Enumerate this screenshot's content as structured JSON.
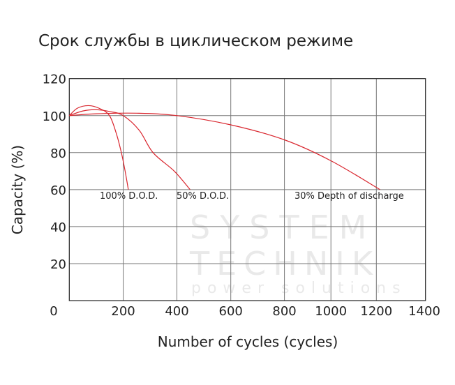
{
  "chart_data": {
    "type": "line",
    "title": "Срок службы в циклическом режиме",
    "xlabel": "Number of cycles (cycles)",
    "ylabel": "Capacity (%)",
    "xlim": [
      0,
      1400
    ],
    "ylim": [
      0,
      120
    ],
    "x_ticks": [
      "0",
      "200",
      "400",
      "600",
      "800",
      "1000",
      "1200",
      "1400"
    ],
    "y_ticks": [
      "120",
      "100",
      "80",
      "60",
      "40",
      "20"
    ],
    "grid": true,
    "line_color": "#d9262e",
    "series": [
      {
        "name": "100% D.O.D.",
        "points": [
          [
            0,
            100
          ],
          [
            30,
            104
          ],
          [
            70,
            105.4
          ],
          [
            110,
            104
          ],
          [
            149,
            100
          ],
          [
            175,
            90
          ],
          [
            193,
            80
          ],
          [
            207,
            70
          ],
          [
            219,
            60
          ]
        ]
      },
      {
        "name": "50% D.O.D.",
        "points": [
          [
            0,
            100
          ],
          [
            50,
            102.5
          ],
          [
            98,
            103.2
          ],
          [
            150,
            102.2
          ],
          [
            200,
            100
          ],
          [
            260,
            92
          ],
          [
            311,
            80
          ],
          [
            390,
            70
          ],
          [
            449,
            60
          ]
        ]
      },
      {
        "name": "30% Depth of discharge",
        "points": [
          [
            0,
            100
          ],
          [
            100,
            101
          ],
          [
            250,
            101.3
          ],
          [
            400,
            100
          ],
          [
            600,
            95
          ],
          [
            800,
            86.9
          ],
          [
            1000,
            75.6
          ],
          [
            1215,
            60
          ]
        ]
      }
    ],
    "watermark": "SYSTEM TECHNIK power solutions"
  }
}
